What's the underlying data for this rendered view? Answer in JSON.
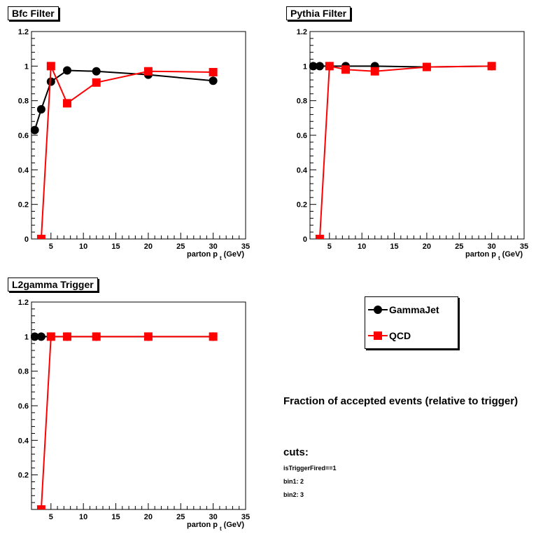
{
  "chart_data": [
    {
      "type": "line",
      "title": "Bfc Filter",
      "xlabel": "parton p",
      "xlabel_sub": "t",
      "xlabel_unit": "(GeV)",
      "xlim": [
        2,
        35
      ],
      "ylim": [
        0,
        1.2
      ],
      "xticks": [
        5,
        10,
        15,
        20,
        25,
        30,
        35
      ],
      "yticks": [
        0,
        0.2,
        0.4,
        0.6,
        0.8,
        1,
        1.2
      ],
      "series": [
        {
          "name": "GammaJet",
          "color": "#000000",
          "marker": "circle",
          "x": [
            2.5,
            3.5,
            5,
            7.5,
            12,
            20,
            30
          ],
          "y": [
            0.63,
            0.75,
            0.91,
            0.975,
            0.97,
            0.95,
            0.915
          ]
        },
        {
          "name": "QCD",
          "color": "#ff0000",
          "marker": "square",
          "x": [
            3.5,
            5,
            7.5,
            12,
            20,
            30
          ],
          "y": [
            0.0,
            1.0,
            0.785,
            0.905,
            0.97,
            0.965
          ]
        }
      ]
    },
    {
      "type": "line",
      "title": "Pythia Filter",
      "xlabel": "parton p",
      "xlabel_sub": "t",
      "xlabel_unit": "(GeV)",
      "xlim": [
        2,
        35
      ],
      "ylim": [
        0,
        1.2
      ],
      "xticks": [
        5,
        10,
        15,
        20,
        25,
        30,
        35
      ],
      "yticks": [
        0,
        0.2,
        0.4,
        0.6,
        0.8,
        1,
        1.2
      ],
      "series": [
        {
          "name": "GammaJet",
          "color": "#000000",
          "marker": "circle",
          "x": [
            2.5,
            3.5,
            5,
            7.5,
            12,
            20,
            30
          ],
          "y": [
            1.0,
            1.0,
            1.0,
            1.0,
            1.0,
            0.995,
            1.0
          ]
        },
        {
          "name": "QCD",
          "color": "#ff0000",
          "marker": "square",
          "x": [
            3.5,
            5,
            7.5,
            12,
            20,
            30
          ],
          "y": [
            0.0,
            1.0,
            0.98,
            0.97,
            0.995,
            1.0
          ]
        }
      ]
    },
    {
      "type": "line",
      "title": "L2gamma Trigger",
      "xlabel": "parton p",
      "xlabel_sub": "t",
      "xlabel_unit": "(GeV)",
      "xlim": [
        2,
        35
      ],
      "ylim": [
        0,
        1.2
      ],
      "xticks": [
        5,
        10,
        15,
        20,
        25,
        30,
        35
      ],
      "yticks": [
        0.2,
        0.4,
        0.6,
        0.8,
        1,
        1.2
      ],
      "series": [
        {
          "name": "GammaJet",
          "color": "#000000",
          "marker": "circle",
          "x": [
            2.5,
            3.5,
            5,
            7.5,
            12,
            20,
            30
          ],
          "y": [
            1.0,
            1.0,
            1.0,
            1.0,
            1.0,
            1.0,
            1.0
          ]
        },
        {
          "name": "QCD",
          "color": "#ff0000",
          "marker": "square",
          "x": [
            3.5,
            5,
            7.5,
            12,
            20,
            30
          ],
          "y": [
            0.0,
            1.0,
            1.0,
            1.0,
            1.0,
            1.0
          ]
        }
      ]
    }
  ],
  "legend": {
    "entries": [
      {
        "label": "GammaJet",
        "color": "#000000",
        "marker": "circle"
      },
      {
        "label": "QCD",
        "color": "#ff0000",
        "marker": "square"
      }
    ]
  },
  "info": {
    "title": "Fraction of accepted events (relative to trigger)",
    "cuts_heading": "cuts:",
    "cuts": [
      "isTriggerFired==1",
      "bin1: 2",
      "bin2: 3"
    ]
  }
}
